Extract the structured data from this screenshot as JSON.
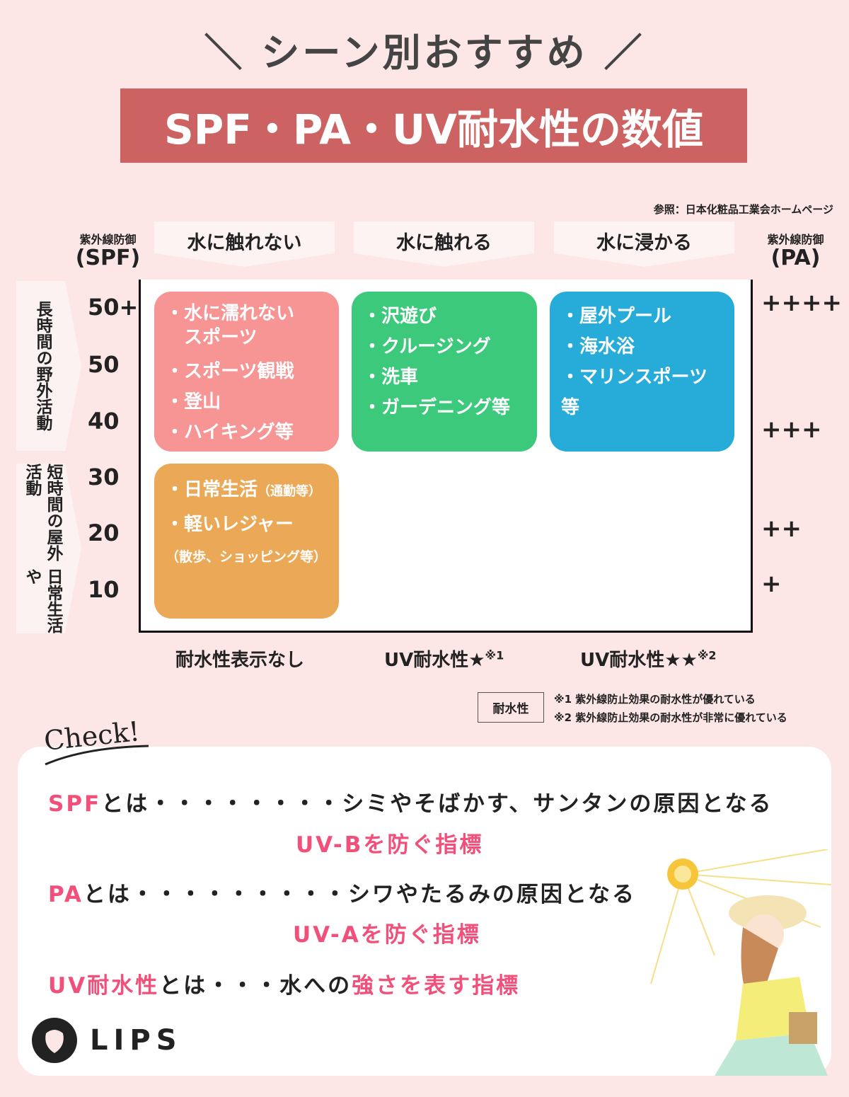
{
  "title": "＼ シーン別おすすめ ／",
  "banner": "SPF・PA・UV耐水性の数値",
  "reference": "参照：日本化粧品工業会ホームページ",
  "columns": [
    "水に触れない",
    "水に触れる",
    "水に浸かる"
  ],
  "spf_label": {
    "small": "紫外線防御",
    "big": "(SPF)"
  },
  "pa_label": {
    "small": "紫外線防御",
    "big": "(PA)"
  },
  "spf_ticks": [
    "50+",
    "50",
    "40",
    "30",
    "20",
    "10"
  ],
  "pa_ticks": [
    "++++",
    "+++",
    "++",
    "+"
  ],
  "side_labels": [
    "長時間の野外活動",
    "短時間の屋外活動",
    "日常生活や"
  ],
  "boxes": {
    "no_water_long": {
      "color": "#f79595",
      "items": [
        "・水に濡れない",
        "　スポーツ",
        "・スポーツ観戦",
        "・登山",
        "・ハイキング等"
      ]
    },
    "touch_water": {
      "color": "#3cc97b",
      "items": [
        "・沢遊び",
        "・クルージング",
        "・洗車",
        "・ガーデニング等"
      ]
    },
    "in_water": {
      "color": "#27acd9",
      "items": [
        "・屋外プール",
        "・海水浴",
        "・マリンスポーツ等"
      ]
    },
    "daily": {
      "color": "#eba856",
      "items": [
        "・日常生活",
        "（通勤等）",
        "・軽いレジャー",
        "（散歩、ショッピング等）"
      ]
    }
  },
  "bottom_labels": [
    {
      "text": "耐水性表示なし",
      "note": ""
    },
    {
      "text": "UV耐水性★",
      "note": "※1"
    },
    {
      "text": "UV耐水性★★",
      "note": "※2"
    }
  ],
  "legend": {
    "box": "耐水性",
    "notes": [
      "※1 紫外線防止効果の耐水性が優れている",
      "※2 紫外線防止効果の耐水性が非常に優れている"
    ]
  },
  "check": {
    "heading": "Check!",
    "lines": [
      {
        "term": "SPF",
        "rest": "とは・・・・・・・・シミやそばかす、サンタンの原因となる",
        "highlight": "UV-Bを防ぐ指標"
      },
      {
        "term": "PA",
        "rest": "とは・・・・・・・・・シワやたるみの原因となる",
        "highlight": "UV-Aを防ぐ指標"
      },
      {
        "term": "UV耐水性",
        "rest": "とは・・・水への",
        "highlight": "強さを表す指標"
      }
    ]
  },
  "logo": "LIPS",
  "colors": {
    "banner": "#cd6262",
    "accent": "#f0507a",
    "background": "#fde6e6"
  }
}
